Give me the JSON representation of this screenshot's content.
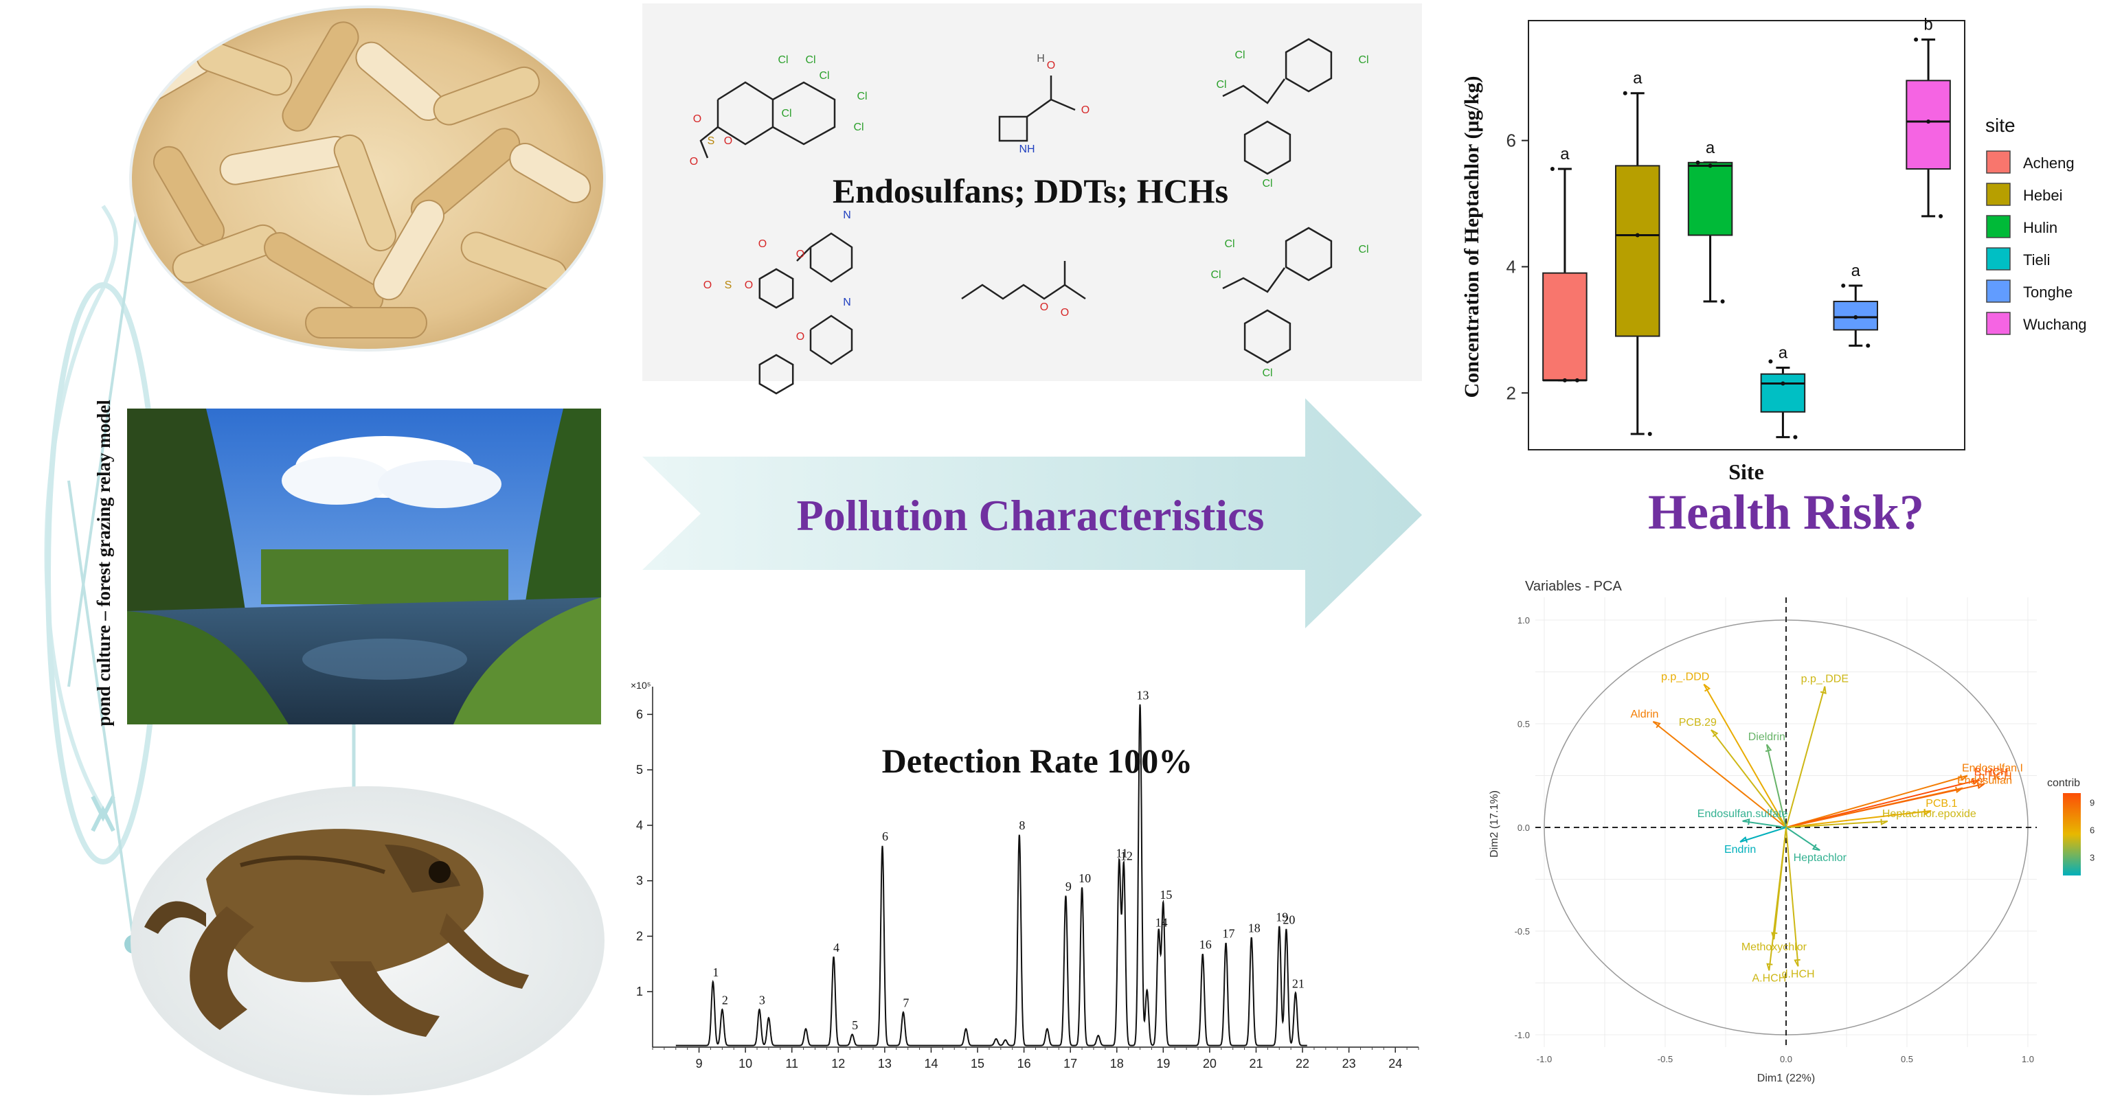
{
  "left_panel": {
    "vertical_label": "pond culture – forest grazing relay model",
    "photos": [
      "frog-oviduct-photo",
      "forest-stream-photo",
      "forest-frog-photo"
    ]
  },
  "structures_panel": {
    "title": "Endosulfans; DDTs; HCHs",
    "atom_labels": {
      "chlorine": "Cl",
      "oxygen": "O",
      "nitrogen": "N",
      "hydrogen": "H",
      "sulfur": "S",
      "nh": "NH"
    }
  },
  "arrow": {
    "label": "Pollution Characteristics"
  },
  "health_risk": {
    "label": "Health Risk?"
  },
  "chromatogram_panel": {
    "title": "Detection Rate 100%",
    "y_exponent_label": "×10⁵",
    "peak_labels": [
      "1",
      "2",
      "3",
      "4",
      "5",
      "6",
      "7",
      "8",
      "9",
      "10",
      "11",
      "12",
      "13",
      "14",
      "15",
      "16",
      "17",
      "18",
      "19",
      "20",
      "21"
    ]
  },
  "chart_data": [
    {
      "type": "box",
      "title": "",
      "xlabel": "Site",
      "ylabel": "Concentration of Heptachlor  (μg/kg)",
      "ylim": [
        1.2,
        7.6
      ],
      "yticks": [
        2,
        4,
        6
      ],
      "legend": {
        "title": "site",
        "position": "right"
      },
      "series": [
        {
          "name": "Acheng",
          "color": "#F8766D",
          "q1": 2.2,
          "median": 2.2,
          "q3": 3.9,
          "whisker_low": 2.2,
          "whisker_high": 5.55,
          "letter": "a",
          "points": [
            5.55,
            2.2
          ]
        },
        {
          "name": "Hebei",
          "color": "#B79F00",
          "q1": 2.9,
          "median": 4.5,
          "q3": 5.6,
          "whisker_low": 1.35,
          "whisker_high": 6.75,
          "letter": "a",
          "points": [
            6.75,
            1.35
          ]
        },
        {
          "name": "Hulin",
          "color": "#00BA38",
          "q1": 4.5,
          "median": 5.6,
          "q3": 5.65,
          "whisker_low": 3.45,
          "whisker_high": 5.65,
          "letter": "a",
          "points": [
            5.65,
            3.45
          ]
        },
        {
          "name": "Tieli",
          "color": "#00BFC4",
          "q1": 1.7,
          "median": 2.15,
          "q3": 2.3,
          "whisker_low": 1.3,
          "whisker_high": 2.4,
          "letter": "a",
          "points": [
            2.5,
            1.3
          ]
        },
        {
          "name": "Tonghe",
          "color": "#619CFF",
          "q1": 3.0,
          "median": 3.2,
          "q3": 3.45,
          "whisker_low": 2.75,
          "whisker_high": 3.7,
          "letter": "a",
          "points": [
            3.7,
            2.75
          ]
        },
        {
          "name": "Wuchang",
          "color": "#F564E3",
          "q1": 5.55,
          "median": 6.3,
          "q3": 6.95,
          "whisker_low": 4.8,
          "whisker_high": 7.6,
          "letter": "b",
          "points": [
            7.6,
            4.8
          ]
        }
      ]
    },
    {
      "type": "scatter",
      "title": "Variables - PCA",
      "xlabel": "Dim1 (22%)",
      "ylabel": "Dim2 (17.1%)",
      "xlim": [
        -1.0,
        1.0
      ],
      "ylim": [
        -1.0,
        1.0
      ],
      "xticks": [
        -1.0,
        -0.5,
        0.0,
        0.5,
        1.0
      ],
      "yticks": [
        -1.0,
        -0.5,
        0.0,
        0.5,
        1.0
      ],
      "grid": true,
      "legend": {
        "title": "contrib",
        "position": "right",
        "ticks": [
          3,
          6,
          9
        ]
      },
      "variables": [
        {
          "name": "p.p_.DDD",
          "x": -0.34,
          "y": 0.69,
          "contrib": 6
        },
        {
          "name": "p.p_.DDE",
          "x": 0.16,
          "y": 0.68,
          "contrib": 5
        },
        {
          "name": "Aldrin",
          "x": -0.55,
          "y": 0.51,
          "contrib": 8
        },
        {
          "name": "PCB.29",
          "x": -0.31,
          "y": 0.47,
          "contrib": 5
        },
        {
          "name": "Dieldrin",
          "x": -0.08,
          "y": 0.4,
          "contrib": 3
        },
        {
          "name": "Endosulfan.I",
          "x": 0.75,
          "y": 0.25,
          "contrib": 8
        },
        {
          "name": "B.HCH",
          "x": 0.8,
          "y": 0.23,
          "contrib": 10
        },
        {
          "name": "Endosulfan",
          "x": 0.73,
          "y": 0.19,
          "contrib": 8
        },
        {
          "name": "g.HCH",
          "x": 0.82,
          "y": 0.21,
          "contrib": 9
        },
        {
          "name": "PCB.1",
          "x": 0.6,
          "y": 0.08,
          "contrib": 6
        },
        {
          "name": "Heptachlor.epoxide",
          "x": 0.42,
          "y": 0.03,
          "contrib": 5
        },
        {
          "name": "Endosulfan.sulfate",
          "x": -0.18,
          "y": 0.03,
          "contrib": 2
        },
        {
          "name": "Endrin",
          "x": -0.19,
          "y": -0.07,
          "contrib": 1
        },
        {
          "name": "Heptachlor",
          "x": 0.14,
          "y": -0.11,
          "contrib": 2
        },
        {
          "name": "Methoxychlor",
          "x": -0.05,
          "y": -0.54,
          "contrib": 5
        },
        {
          "name": "A.HCH",
          "x": -0.07,
          "y": -0.69,
          "contrib": 5
        },
        {
          "name": "d.HCH",
          "x": 0.05,
          "y": -0.67,
          "contrib": 5
        }
      ]
    },
    {
      "type": "line",
      "title": "Detection Rate 100%",
      "xlabel": "",
      "ylabel": "",
      "xlim": [
        8,
        24.5
      ],
      "ylim": [
        0,
        6.5
      ],
      "xticks": [
        9,
        10,
        11,
        12,
        13,
        14,
        15,
        16,
        17,
        18,
        19,
        20,
        21,
        22,
        23,
        24
      ],
      "yticks": [
        1,
        2,
        3,
        4,
        5,
        6
      ],
      "peaks": [
        {
          "label": "1",
          "x": 9.3,
          "y": 1.15
        },
        {
          "label": "2",
          "x": 9.5,
          "y": 0.65
        },
        {
          "label": "3",
          "x": 10.3,
          "y": 0.65
        },
        {
          "label": "",
          "x": 10.5,
          "y": 0.5
        },
        {
          "label": "",
          "x": 11.3,
          "y": 0.3
        },
        {
          "label": "4",
          "x": 11.9,
          "y": 1.6
        },
        {
          "label": "5",
          "x": 12.3,
          "y": 0.2
        },
        {
          "label": "6",
          "x": 12.95,
          "y": 3.6
        },
        {
          "label": "7",
          "x": 13.4,
          "y": 0.6
        },
        {
          "label": "",
          "x": 14.75,
          "y": 0.3
        },
        {
          "label": "",
          "x": 15.4,
          "y": 0.12
        },
        {
          "label": "",
          "x": 15.6,
          "y": 0.1
        },
        {
          "label": "8",
          "x": 15.9,
          "y": 3.8
        },
        {
          "label": "",
          "x": 16.5,
          "y": 0.3
        },
        {
          "label": "9",
          "x": 16.9,
          "y": 2.7
        },
        {
          "label": "10",
          "x": 17.25,
          "y": 2.85
        },
        {
          "label": "",
          "x": 17.6,
          "y": 0.18
        },
        {
          "label": "11",
          "x": 18.05,
          "y": 3.3
        },
        {
          "label": "12",
          "x": 18.15,
          "y": 3.25
        },
        {
          "label": "13",
          "x": 18.5,
          "y": 6.15
        },
        {
          "label": "",
          "x": 18.65,
          "y": 1.0
        },
        {
          "label": "14",
          "x": 18.9,
          "y": 2.05
        },
        {
          "label": "15",
          "x": 19.0,
          "y": 2.55
        },
        {
          "label": "16",
          "x": 19.85,
          "y": 1.65
        },
        {
          "label": "17",
          "x": 20.35,
          "y": 1.85
        },
        {
          "label": "18",
          "x": 20.9,
          "y": 1.95
        },
        {
          "label": "19",
          "x": 21.5,
          "y": 2.15
        },
        {
          "label": "20",
          "x": 21.65,
          "y": 2.1
        },
        {
          "label": "21",
          "x": 21.85,
          "y": 0.95
        }
      ]
    }
  ]
}
